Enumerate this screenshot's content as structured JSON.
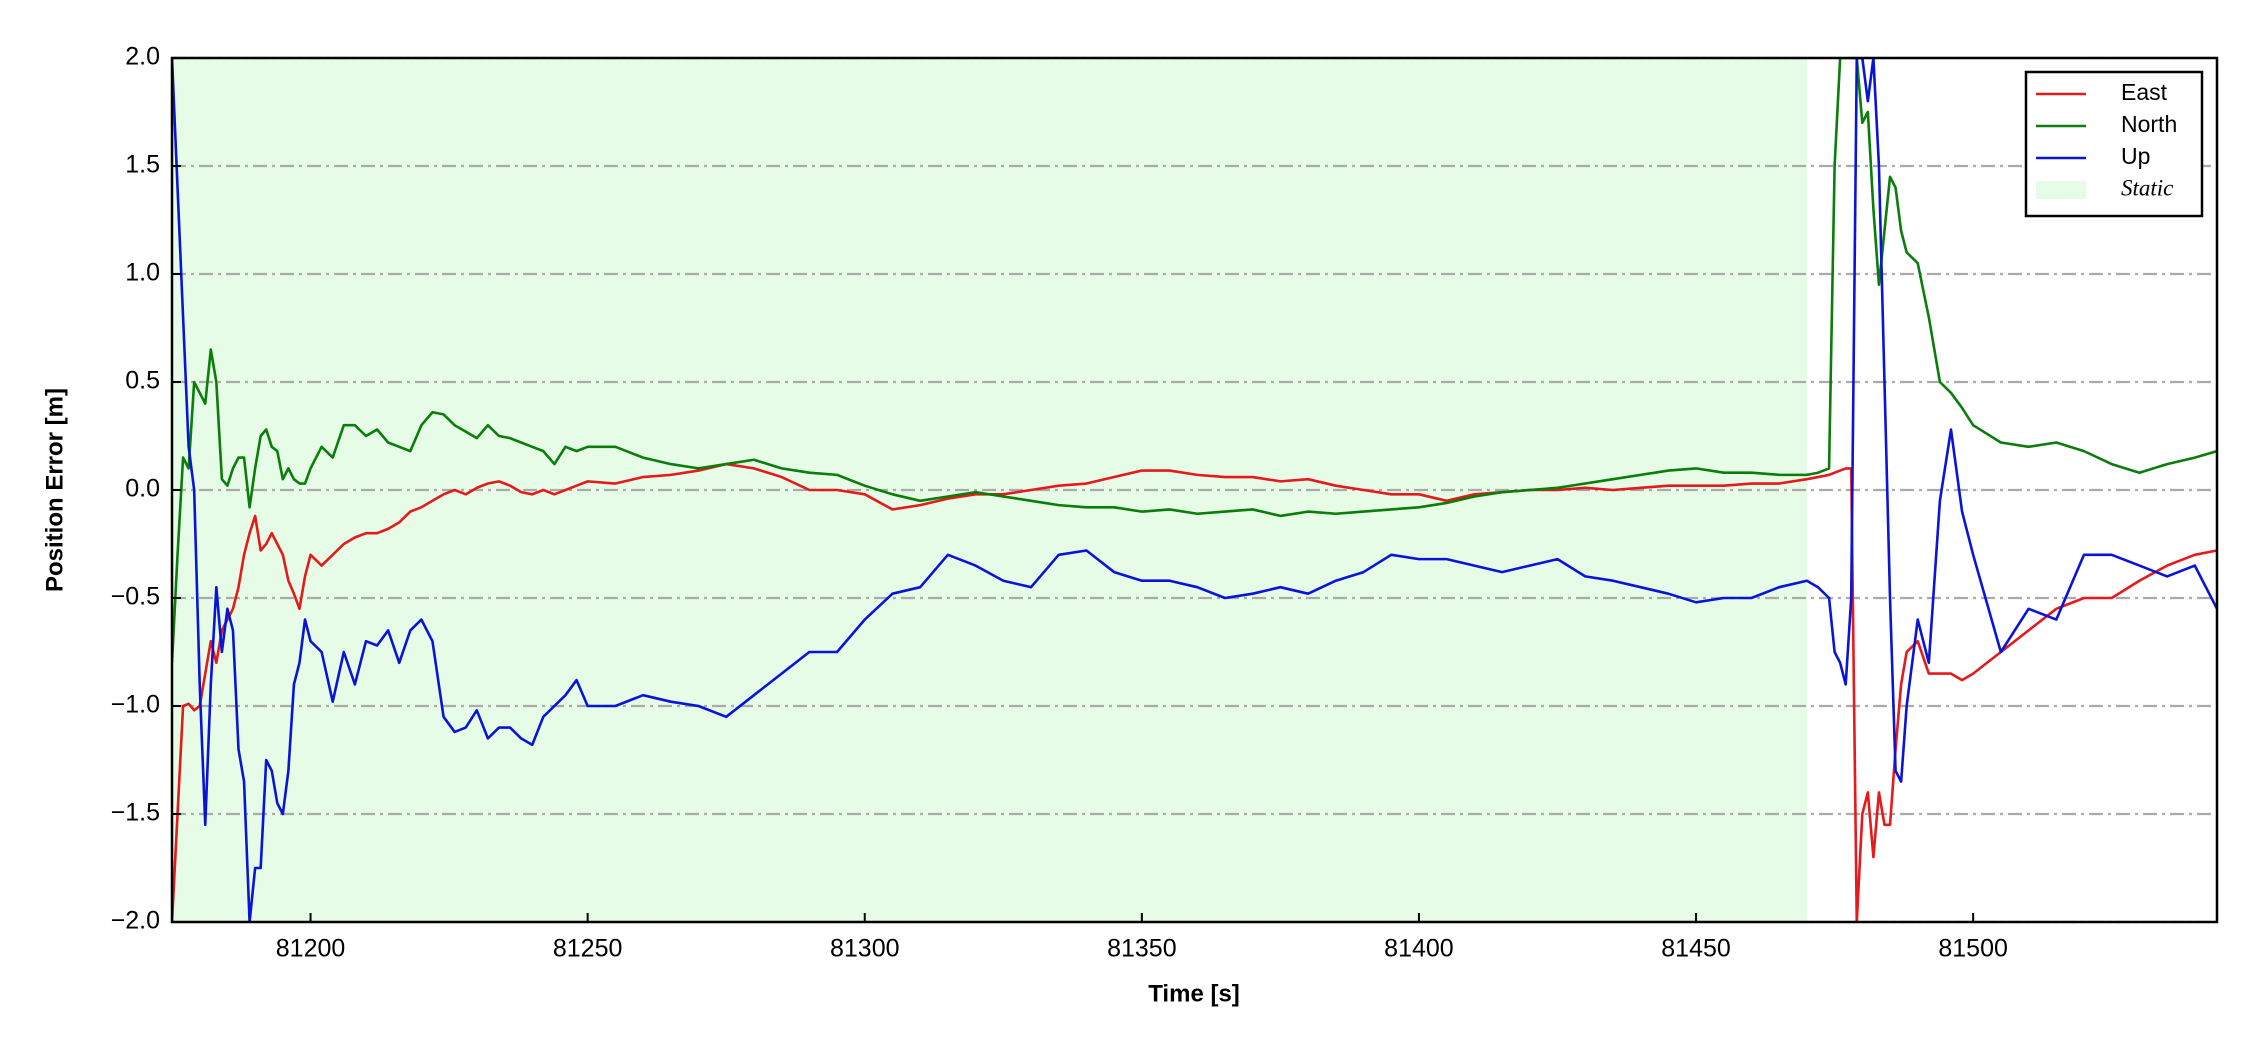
{
  "chart_data": {
    "type": "line",
    "xlabel": "Time [s]",
    "ylabel": "Position Error [m]",
    "xlim": [
      81175,
      81544
    ],
    "ylim": [
      -2.0,
      2.0
    ],
    "xticks": [
      81200,
      81250,
      81300,
      81350,
      81400,
      81450,
      81500
    ],
    "yticks": [
      {
        "value": -2.0,
        "label": "−2.0"
      },
      {
        "value": -1.5,
        "label": "−1.5"
      },
      {
        "value": -1.0,
        "label": "−1.0"
      },
      {
        "value": -0.5,
        "label": "−0.5"
      },
      {
        "value": 0.0,
        "label": "0.0"
      },
      0.5,
      {
        "value": 1.0,
        "label": "1.0"
      },
      1.5,
      {
        "value": 2.0,
        "label": "2.0"
      }
    ],
    "grid": "y",
    "legend": "upper right",
    "shade": {
      "name": "Static",
      "xrange": [
        81175,
        81470
      ],
      "color": "#e6fce6"
    },
    "x": [
      81175,
      81176,
      81177,
      81178,
      81179,
      81180,
      81181,
      81182,
      81183,
      81184,
      81185,
      81186,
      81187,
      81188,
      81189,
      81190,
      81191,
      81192,
      81193,
      81194,
      81195,
      81196,
      81197,
      81198,
      81199,
      81200,
      81202,
      81204,
      81206,
      81208,
      81210,
      81212,
      81214,
      81216,
      81218,
      81220,
      81222,
      81224,
      81226,
      81228,
      81230,
      81232,
      81234,
      81236,
      81238,
      81240,
      81242,
      81244,
      81246,
      81248,
      81250,
      81255,
      81260,
      81265,
      81270,
      81275,
      81280,
      81285,
      81290,
      81295,
      81300,
      81305,
      81310,
      81315,
      81320,
      81325,
      81330,
      81335,
      81340,
      81345,
      81350,
      81355,
      81360,
      81365,
      81370,
      81375,
      81380,
      81385,
      81390,
      81395,
      81400,
      81405,
      81410,
      81415,
      81420,
      81425,
      81430,
      81435,
      81440,
      81445,
      81450,
      81455,
      81460,
      81465,
      81470,
      81472,
      81474,
      81475,
      81476,
      81477,
      81478,
      81479,
      81480,
      81481,
      81482,
      81483,
      81484,
      81485,
      81486,
      81487,
      81488,
      81490,
      81492,
      81494,
      81496,
      81498,
      81500,
      81505,
      81510,
      81515,
      81520,
      81525,
      81530,
      81535,
      81540,
      81544
    ],
    "series": [
      {
        "name": "East",
        "color": "#e41a1c",
        "values": [
          -2,
          -1.5,
          -1,
          -0.99,
          -1.02,
          -1,
          -0.85,
          -0.7,
          -0.8,
          -0.65,
          -0.6,
          -0.55,
          -0.45,
          -0.3,
          -0.2,
          -0.12,
          -0.28,
          -0.25,
          -0.2,
          -0.25,
          -0.3,
          -0.42,
          -0.48,
          -0.55,
          -0.4,
          -0.3,
          -0.35,
          -0.3,
          -0.25,
          -0.22,
          -0.2,
          -0.2,
          -0.18,
          -0.15,
          -0.1,
          -0.08,
          -0.05,
          -0.02,
          0,
          -0.02,
          0.01,
          0.03,
          0.04,
          0.02,
          -0.01,
          -0.02,
          0,
          -0.02,
          0,
          0.02,
          0.04,
          0.03,
          0.06,
          0.07,
          0.09,
          0.12,
          0.1,
          0.06,
          0,
          0,
          -0.02,
          -0.09,
          -0.07,
          -0.04,
          -0.02,
          -0.02,
          0,
          0.02,
          0.03,
          0.06,
          0.09,
          0.09,
          0.07,
          0.06,
          0.06,
          0.04,
          0.05,
          0.02,
          0,
          -0.02,
          -0.02,
          -0.05,
          -0.02,
          -0.01,
          0,
          0,
          0.01,
          0,
          0.01,
          0.02,
          0.02,
          0.02,
          0.03,
          0.03,
          0.05,
          0.06,
          0.07,
          0.08,
          0.09,
          0.1,
          0.1,
          -2,
          -1.5,
          -1.4,
          -1.7,
          -1.4,
          -1.55,
          -1.55,
          -1.2,
          -0.9,
          -0.75,
          -0.7,
          -0.85,
          -0.85,
          -0.85,
          -0.88,
          -0.85,
          -0.75,
          -0.65,
          -0.55,
          -0.5,
          -0.5,
          -0.42,
          -0.35,
          -0.3,
          -0.28
        ]
      },
      {
        "name": "North",
        "color": "#0a7d0a",
        "values": [
          -0.8,
          -0.3,
          0.15,
          0.1,
          0.5,
          0.45,
          0.4,
          0.65,
          0.5,
          0.05,
          0.02,
          0.1,
          0.15,
          0.15,
          -0.08,
          0.1,
          0.25,
          0.28,
          0.2,
          0.18,
          0.05,
          0.1,
          0.05,
          0.03,
          0.03,
          0.1,
          0.2,
          0.15,
          0.3,
          0.3,
          0.25,
          0.28,
          0.22,
          0.2,
          0.18,
          0.3,
          0.36,
          0.35,
          0.3,
          0.27,
          0.24,
          0.3,
          0.25,
          0.24,
          0.22,
          0.2,
          0.18,
          0.12,
          0.2,
          0.18,
          0.2,
          0.2,
          0.15,
          0.12,
          0.1,
          0.12,
          0.14,
          0.1,
          0.08,
          0.07,
          0.02,
          -0.02,
          -0.05,
          -0.03,
          -0.01,
          -0.03,
          -0.05,
          -0.07,
          -0.08,
          -0.08,
          -0.1,
          -0.09,
          -0.11,
          -0.1,
          -0.09,
          -0.12,
          -0.1,
          -0.11,
          -0.1,
          -0.09,
          -0.08,
          -0.06,
          -0.03,
          -0.01,
          0,
          0.01,
          0.03,
          0.05,
          0.07,
          0.09,
          0.1,
          0.08,
          0.08,
          0.07,
          0.07,
          0.08,
          0.1,
          1.5,
          2,
          2,
          2,
          2,
          1.7,
          1.75,
          1.3,
          0.95,
          1.2,
          1.45,
          1.4,
          1.2,
          1.1,
          1.05,
          0.8,
          0.5,
          0.45,
          0.38,
          0.3,
          0.22,
          0.2,
          0.22,
          0.18,
          0.12,
          0.08,
          0.12,
          0.15,
          0.18
        ]
      },
      {
        "name": "Up",
        "color": "#0a14d8",
        "values": [
          2,
          1.4,
          0.8,
          0.2,
          0,
          -0.9,
          -1.55,
          -0.9,
          -0.45,
          -0.75,
          -0.55,
          -0.65,
          -1.2,
          -1.35,
          -2,
          -1.75,
          -1.75,
          -1.25,
          -1.3,
          -1.45,
          -1.5,
          -1.3,
          -0.9,
          -0.8,
          -0.6,
          -0.7,
          -0.75,
          -0.98,
          -0.75,
          -0.9,
          -0.7,
          -0.72,
          -0.65,
          -0.8,
          -0.65,
          -0.6,
          -0.7,
          -1.05,
          -1.12,
          -1.1,
          -1.02,
          -1.15,
          -1.1,
          -1.1,
          -1.15,
          -1.18,
          -1.05,
          -1,
          -0.95,
          -0.88,
          -1,
          -1,
          -0.95,
          -0.98,
          -1,
          -1.05,
          -0.95,
          -0.85,
          -0.75,
          -0.75,
          -0.6,
          -0.48,
          -0.45,
          -0.3,
          -0.35,
          -0.42,
          -0.45,
          -0.3,
          -0.28,
          -0.38,
          -0.42,
          -0.42,
          -0.45,
          -0.5,
          -0.48,
          -0.45,
          -0.48,
          -0.42,
          -0.38,
          -0.3,
          -0.32,
          -0.32,
          -0.35,
          -0.38,
          -0.35,
          -0.32,
          -0.4,
          -0.42,
          -0.45,
          -0.48,
          -0.52,
          -0.5,
          -0.5,
          -0.45,
          -0.42,
          -0.45,
          -0.5,
          -0.75,
          -0.8,
          -0.9,
          -0.5,
          2,
          2,
          1.8,
          2,
          1.5,
          0.5,
          -0.5,
          -1.3,
          -1.35,
          -1,
          -0.6,
          -0.8,
          -0.05,
          0.28,
          -0.1,
          -0.3,
          -0.75,
          -0.55,
          -0.6,
          -0.3,
          -0.3,
          -0.35,
          -0.4,
          -0.35,
          -0.55
        ]
      }
    ]
  }
}
